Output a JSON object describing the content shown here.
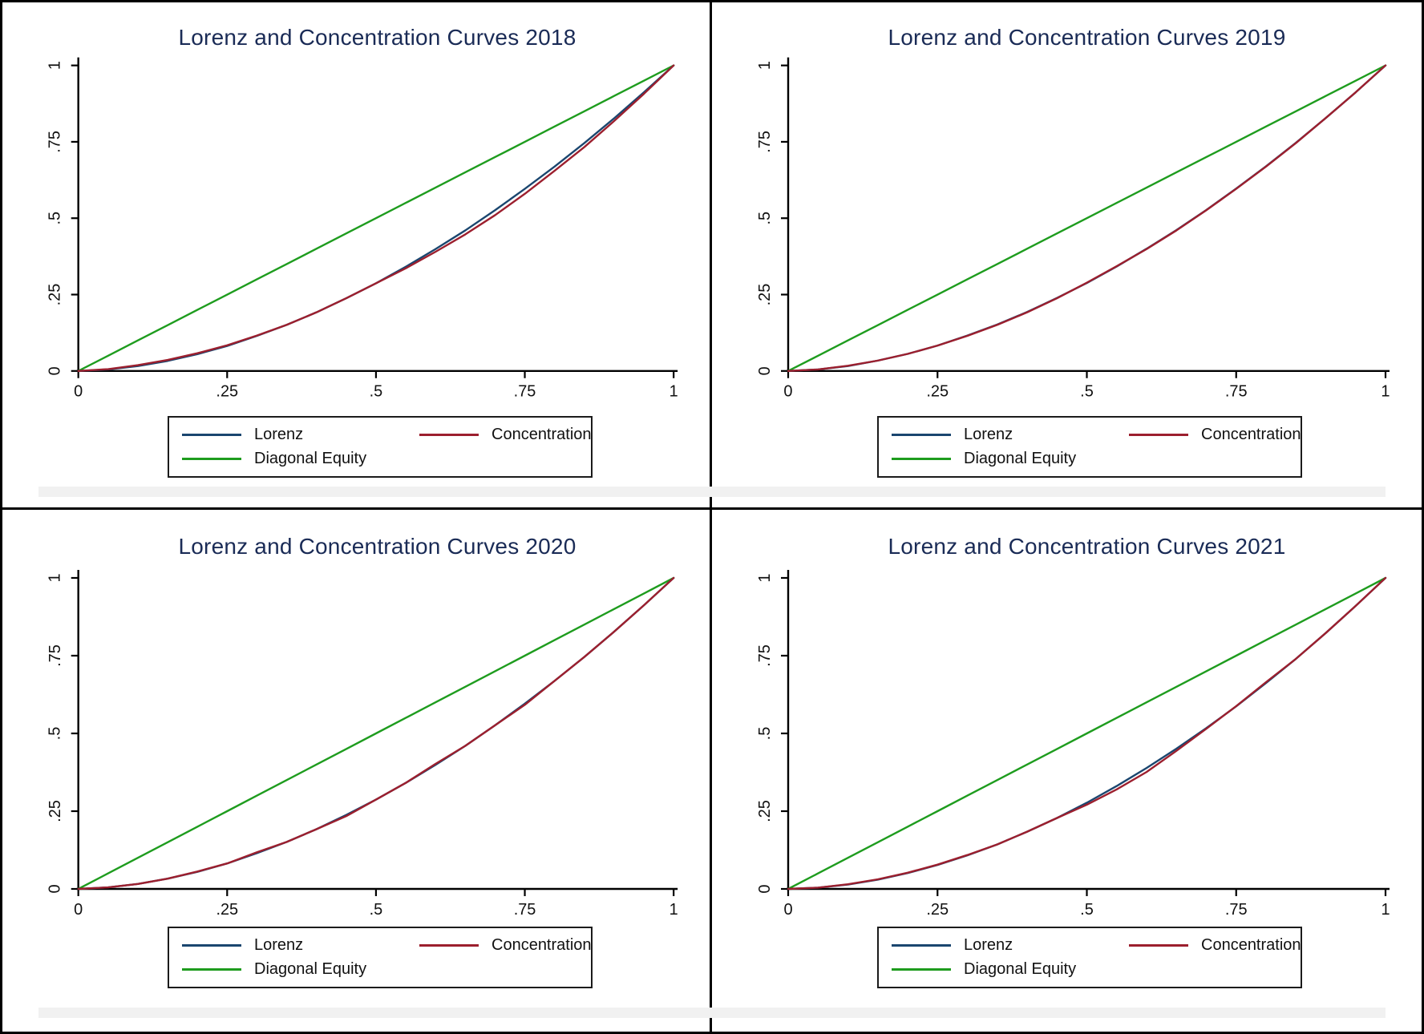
{
  "figure": {
    "background": "#ffffff",
    "border_color": "#000000",
    "artifact_band_color": "#f1f1f1"
  },
  "colors": {
    "title": "#1a2b56",
    "axis": "#000000",
    "tick_label": "#111111",
    "lorenz": "#1a466f",
    "concentration": "#9c1f2e",
    "diagonal_equity": "#1e9c1e"
  },
  "chart_data": [
    {
      "type": "line",
      "title": "Lorenz and Concentration Curves 2018",
      "xlabel": "",
      "ylabel": "",
      "xlim": [
        0,
        1
      ],
      "ylim": [
        0,
        1
      ],
      "grid": false,
      "legend_position": "below",
      "x_tick_values": [
        0,
        0.25,
        0.5,
        0.75,
        1
      ],
      "x_tick_labels": [
        "0",
        ".25",
        ".5",
        ".75",
        "1"
      ],
      "y_tick_values": [
        0,
        0.25,
        0.5,
        0.75,
        1
      ],
      "y_tick_labels": [
        "0",
        ".25",
        ".5",
        ".75",
        "1"
      ],
      "x": [
        0,
        0.05,
        0.1,
        0.15,
        0.2,
        0.25,
        0.3,
        0.35,
        0.4,
        0.45,
        0.5,
        0.55,
        0.6,
        0.65,
        0.7,
        0.75,
        0.8,
        0.85,
        0.9,
        0.95,
        1
      ],
      "series": [
        {
          "name": "Lorenz",
          "color": "#1a466f",
          "y": [
            0,
            0.005,
            0.016,
            0.033,
            0.055,
            0.082,
            0.115,
            0.151,
            0.192,
            0.238,
            0.287,
            0.341,
            0.399,
            0.46,
            0.526,
            0.596,
            0.669,
            0.746,
            0.827,
            0.912,
            1
          ]
        },
        {
          "name": "Concentration",
          "color": "#9c1f2e",
          "y": [
            0,
            0.006,
            0.019,
            0.036,
            0.058,
            0.084,
            0.116,
            0.151,
            0.192,
            0.238,
            0.287,
            0.336,
            0.39,
            0.447,
            0.51,
            0.58,
            0.655,
            0.733,
            0.818,
            0.907,
            1
          ]
        },
        {
          "name": "Diagonal Equity",
          "color": "#1e9c1e",
          "y": [
            0,
            0.05,
            0.1,
            0.15,
            0.2,
            0.25,
            0.3,
            0.35,
            0.4,
            0.45,
            0.5,
            0.55,
            0.6,
            0.65,
            0.7,
            0.75,
            0.8,
            0.85,
            0.9,
            0.95,
            1
          ]
        }
      ]
    },
    {
      "type": "line",
      "title": "Lorenz and Concentration Curves 2019",
      "xlabel": "",
      "ylabel": "",
      "xlim": [
        0,
        1
      ],
      "ylim": [
        0,
        1
      ],
      "grid": false,
      "legend_position": "below",
      "x_tick_values": [
        0,
        0.25,
        0.5,
        0.75,
        1
      ],
      "x_tick_labels": [
        "0",
        ".25",
        ".5",
        ".75",
        "1"
      ],
      "y_tick_values": [
        0,
        0.25,
        0.5,
        0.75,
        1
      ],
      "y_tick_labels": [
        "0",
        ".25",
        ".5",
        ".75",
        "1"
      ],
      "x": [
        0,
        0.05,
        0.1,
        0.15,
        0.2,
        0.25,
        0.3,
        0.35,
        0.4,
        0.45,
        0.5,
        0.55,
        0.6,
        0.65,
        0.7,
        0.75,
        0.8,
        0.85,
        0.9,
        0.95,
        1
      ],
      "series": [
        {
          "name": "Lorenz",
          "color": "#1a466f",
          "y": [
            0,
            0.005,
            0.016,
            0.034,
            0.056,
            0.083,
            0.116,
            0.152,
            0.193,
            0.239,
            0.288,
            0.342,
            0.4,
            0.461,
            0.527,
            0.597,
            0.67,
            0.747,
            0.828,
            0.912,
            1
          ]
        },
        {
          "name": "Concentration",
          "color": "#9c1f2e",
          "y": [
            0,
            0.005,
            0.017,
            0.034,
            0.056,
            0.083,
            0.115,
            0.151,
            0.192,
            0.238,
            0.289,
            0.343,
            0.399,
            0.46,
            0.526,
            0.596,
            0.669,
            0.746,
            0.828,
            0.912,
            1
          ]
        },
        {
          "name": "Diagonal Equity",
          "color": "#1e9c1e",
          "y": [
            0,
            0.05,
            0.1,
            0.15,
            0.2,
            0.25,
            0.3,
            0.35,
            0.4,
            0.45,
            0.5,
            0.55,
            0.6,
            0.65,
            0.7,
            0.75,
            0.8,
            0.85,
            0.9,
            0.95,
            1
          ]
        }
      ]
    },
    {
      "type": "line",
      "title": "Lorenz and Concentration Curves 2020",
      "xlabel": "",
      "ylabel": "",
      "xlim": [
        0,
        1
      ],
      "ylim": [
        0,
        1
      ],
      "grid": false,
      "legend_position": "below",
      "x_tick_values": [
        0,
        0.25,
        0.5,
        0.75,
        1
      ],
      "x_tick_labels": [
        "0",
        ".25",
        ".5",
        ".75",
        "1"
      ],
      "y_tick_values": [
        0,
        0.25,
        0.5,
        0.75,
        1
      ],
      "y_tick_labels": [
        "0",
        ".25",
        ".5",
        ".75",
        "1"
      ],
      "x": [
        0,
        0.05,
        0.1,
        0.15,
        0.2,
        0.25,
        0.3,
        0.35,
        0.4,
        0.45,
        0.5,
        0.55,
        0.6,
        0.65,
        0.7,
        0.75,
        0.8,
        0.85,
        0.9,
        0.95,
        1
      ],
      "series": [
        {
          "name": "Lorenz",
          "color": "#1a466f",
          "y": [
            0,
            0.005,
            0.016,
            0.033,
            0.055,
            0.082,
            0.115,
            0.151,
            0.192,
            0.238,
            0.287,
            0.341,
            0.399,
            0.46,
            0.526,
            0.596,
            0.669,
            0.746,
            0.827,
            0.912,
            1
          ]
        },
        {
          "name": "Concentration",
          "color": "#9c1f2e",
          "y": [
            0,
            0.005,
            0.016,
            0.033,
            0.056,
            0.082,
            0.118,
            0.151,
            0.192,
            0.234,
            0.287,
            0.341,
            0.402,
            0.46,
            0.526,
            0.592,
            0.669,
            0.746,
            0.827,
            0.912,
            1
          ]
        },
        {
          "name": "Diagonal Equity",
          "color": "#1e9c1e",
          "y": [
            0,
            0.05,
            0.1,
            0.15,
            0.2,
            0.25,
            0.3,
            0.35,
            0.4,
            0.45,
            0.5,
            0.55,
            0.6,
            0.65,
            0.7,
            0.75,
            0.8,
            0.85,
            0.9,
            0.95,
            1
          ]
        }
      ]
    },
    {
      "type": "line",
      "title": "Lorenz and Concentration Curves 2021",
      "xlabel": "",
      "ylabel": "",
      "xlim": [
        0,
        1
      ],
      "ylim": [
        0,
        1
      ],
      "grid": false,
      "legend_position": "below",
      "x_tick_values": [
        0,
        0.25,
        0.5,
        0.75,
        1
      ],
      "x_tick_labels": [
        "0",
        ".25",
        ".5",
        ".75",
        "1"
      ],
      "y_tick_values": [
        0,
        0.25,
        0.5,
        0.75,
        1
      ],
      "y_tick_labels": [
        "0",
        ".25",
        ".5",
        ".75",
        "1"
      ],
      "x": [
        0,
        0.05,
        0.1,
        0.15,
        0.2,
        0.25,
        0.3,
        0.35,
        0.4,
        0.45,
        0.5,
        0.55,
        0.6,
        0.65,
        0.7,
        0.75,
        0.8,
        0.85,
        0.9,
        0.95,
        1
      ],
      "series": [
        {
          "name": "Lorenz",
          "color": "#1a466f",
          "y": [
            0,
            0.004,
            0.014,
            0.03,
            0.051,
            0.077,
            0.108,
            0.143,
            0.184,
            0.228,
            0.277,
            0.331,
            0.389,
            0.451,
            0.517,
            0.587,
            0.662,
            0.74,
            0.823,
            0.91,
            1
          ]
        },
        {
          "name": "Concentration",
          "color": "#9c1f2e",
          "y": [
            0,
            0.004,
            0.015,
            0.031,
            0.052,
            0.078,
            0.109,
            0.143,
            0.184,
            0.228,
            0.271,
            0.32,
            0.376,
            0.444,
            0.515,
            0.588,
            0.665,
            0.74,
            0.823,
            0.91,
            1
          ]
        },
        {
          "name": "Diagonal Equity",
          "color": "#1e9c1e",
          "y": [
            0,
            0.05,
            0.1,
            0.15,
            0.2,
            0.25,
            0.3,
            0.35,
            0.4,
            0.45,
            0.5,
            0.55,
            0.6,
            0.65,
            0.7,
            0.75,
            0.8,
            0.85,
            0.9,
            0.95,
            1
          ]
        }
      ]
    }
  ]
}
